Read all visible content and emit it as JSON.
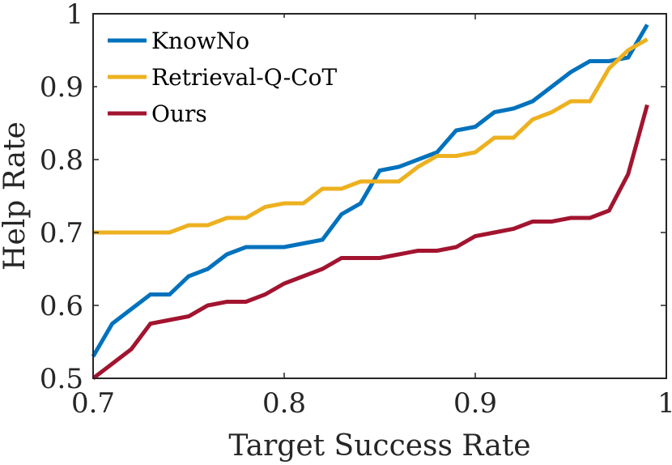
{
  "chart_data": {
    "type": "line",
    "title": "",
    "xlabel": "Target Success Rate",
    "ylabel": "Help Rate",
    "xlim": [
      0.7,
      1.0
    ],
    "ylim": [
      0.5,
      1.0
    ],
    "xticks": [
      0.7,
      0.8,
      0.9,
      1.0
    ],
    "xtick_labels": [
      "0.7",
      "0.8",
      "0.9",
      "1"
    ],
    "yticks": [
      0.5,
      0.6,
      0.7,
      0.8,
      0.9,
      1.0
    ],
    "ytick_labels": [
      "0.5",
      "0.6",
      "0.7",
      "0.8",
      "0.9",
      "1"
    ],
    "grid": false,
    "legend_position": "top-left",
    "x": [
      0.7,
      0.71,
      0.72,
      0.73,
      0.74,
      0.75,
      0.76,
      0.77,
      0.78,
      0.79,
      0.8,
      0.81,
      0.82,
      0.83,
      0.84,
      0.85,
      0.86,
      0.87,
      0.88,
      0.89,
      0.9,
      0.91,
      0.92,
      0.93,
      0.94,
      0.95,
      0.96,
      0.97,
      0.98,
      0.99
    ],
    "series": [
      {
        "name": "KnowNo",
        "color": "#0072BD",
        "values": [
          0.53,
          0.575,
          0.595,
          0.615,
          0.615,
          0.64,
          0.65,
          0.67,
          0.68,
          0.68,
          0.68,
          0.685,
          0.69,
          0.725,
          0.74,
          0.785,
          0.79,
          0.8,
          0.81,
          0.84,
          0.845,
          0.865,
          0.87,
          0.88,
          0.9,
          0.92,
          0.935,
          0.935,
          0.94,
          0.985
        ]
      },
      {
        "name": "Retrieval-Q-CoT",
        "color": "#EDB120",
        "values": [
          0.7,
          0.7,
          0.7,
          0.7,
          0.7,
          0.71,
          0.71,
          0.72,
          0.72,
          0.735,
          0.74,
          0.74,
          0.76,
          0.76,
          0.77,
          0.77,
          0.77,
          0.79,
          0.805,
          0.805,
          0.81,
          0.83,
          0.83,
          0.855,
          0.865,
          0.88,
          0.88,
          0.925,
          0.95,
          0.965
        ]
      },
      {
        "name": "Ours",
        "color": "#A2142F",
        "values": [
          0.5,
          0.52,
          0.54,
          0.575,
          0.58,
          0.585,
          0.6,
          0.605,
          0.605,
          0.615,
          0.63,
          0.64,
          0.65,
          0.665,
          0.665,
          0.665,
          0.67,
          0.675,
          0.675,
          0.68,
          0.695,
          0.7,
          0.705,
          0.715,
          0.715,
          0.72,
          0.72,
          0.73,
          0.78,
          0.875
        ]
      }
    ]
  }
}
